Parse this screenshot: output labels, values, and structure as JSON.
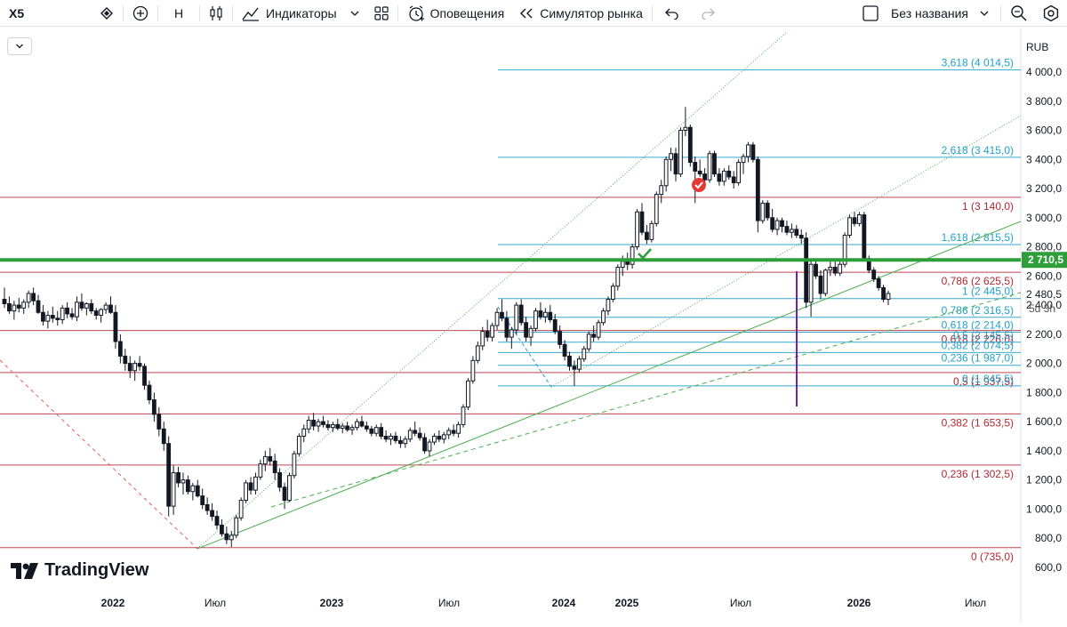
{
  "toolbar": {
    "symbol": "X5",
    "interval": "Н",
    "indicators_label": "Индикаторы",
    "alerts_label": "Оповещения",
    "replay_label": "Симулятор рынка",
    "layout_name": "Без названия",
    "icons": [
      "flag-icon",
      "add-icon",
      "candles-icon",
      "indicators-icon",
      "chevron-down-icon",
      "templates-icon",
      "alert-icon",
      "replay-icon",
      "undo-icon",
      "redo-icon",
      "layout-icon",
      "search-icon",
      "settings-icon"
    ]
  },
  "brand": {
    "logo_text": "TradingView"
  },
  "chart_data": {
    "type": "candlestick",
    "currency": "RUB",
    "last_price": "2 710,5",
    "cursor_price": "2 480,5",
    "countdown": "5d 3h",
    "y_axis_ticks": [
      "4 000,0",
      "3 800,0",
      "3 600,0",
      "3 400,0",
      "3 200,0",
      "3 000,0",
      "2 800,0",
      "2 600,0",
      "2 400,0",
      "2 200,0",
      "2 000,0",
      "1 800,0",
      "1 600,0",
      "1 400,0",
      "1 200,0",
      "1 000,0",
      "800,0",
      "600,0"
    ],
    "y_axis_values": [
      4000,
      3800,
      3600,
      3400,
      3200,
      3000,
      2800,
      2600,
      2400,
      2200,
      2000,
      1800,
      1600,
      1400,
      1200,
      1000,
      800,
      600
    ],
    "x_axis_labels": [
      "2022",
      "Июл",
      "2023",
      "Июл",
      "2024",
      "2025",
      "Июл",
      "2026",
      "Июл"
    ],
    "x_axis_bold": [
      true,
      false,
      true,
      false,
      true,
      true,
      false,
      true,
      false
    ],
    "fib_large": [
      {
        "label": "1 (3 140,0)",
        "value": 3140
      },
      {
        "label": "0,786 (2 625,5)",
        "value": 2625.5
      },
      {
        "label": "0,618 (2 226,0)",
        "value": 2226
      },
      {
        "label": "0,5 (1 937,5)",
        "value": 1937.5
      },
      {
        "label": "0,382 (1 653,5)",
        "value": 1653.5
      },
      {
        "label": "0,236 (1 302,5)",
        "value": 1302.5
      },
      {
        "label": "0 (735,0)",
        "value": 735
      }
    ],
    "fib_small": [
      {
        "label": "3,618 (4 014,5)",
        "value": 4014.5
      },
      {
        "label": "2,618 (3 415,0)",
        "value": 3415
      },
      {
        "label": "1,618 (2 815,5)",
        "value": 2815.5
      },
      {
        "label": "1 (2 445,0)",
        "value": 2445
      },
      {
        "label": "0,786 (2 316,5)",
        "value": 2316.5
      },
      {
        "label": "0,618 (2 214,0)",
        "value": 2214
      },
      {
        "label": "0,5 (2 145,5)",
        "value": 2145.5
      },
      {
        "label": "0,382 (2 074,5)",
        "value": 2074.5
      },
      {
        "label": "0,236 (1 987,0)",
        "value": 1987
      },
      {
        "label": "0 (1 845,5)",
        "value": 1845.5
      }
    ],
    "support_level": 2710.5,
    "colors": {
      "up": "#131722",
      "down": "#131722",
      "fib_large": "#b22833",
      "fib_small": "#22a0c8",
      "support": "#2e9e3a",
      "trend": "#4caf50",
      "vertical": "#7b1fa2"
    },
    "candles": [
      [
        2440,
        2520,
        2380,
        2410
      ],
      [
        2410,
        2460,
        2340,
        2360
      ],
      [
        2360,
        2430,
        2300,
        2400
      ],
      [
        2400,
        2450,
        2350,
        2380
      ],
      [
        2380,
        2440,
        2340,
        2420
      ],
      [
        2420,
        2500,
        2380,
        2480
      ],
      [
        2480,
        2520,
        2400,
        2430
      ],
      [
        2430,
        2470,
        2340,
        2350
      ],
      [
        2350,
        2400,
        2260,
        2290
      ],
      [
        2290,
        2360,
        2240,
        2330
      ],
      [
        2330,
        2390,
        2280,
        2310
      ],
      [
        2310,
        2360,
        2260,
        2300
      ],
      [
        2300,
        2400,
        2270,
        2380
      ],
      [
        2380,
        2420,
        2310,
        2340
      ],
      [
        2340,
        2380,
        2300,
        2320
      ],
      [
        2320,
        2460,
        2290,
        2420
      ],
      [
        2420,
        2480,
        2360,
        2380
      ],
      [
        2380,
        2420,
        2330,
        2410
      ],
      [
        2410,
        2440,
        2340,
        2360
      ],
      [
        2360,
        2380,
        2300,
        2330
      ],
      [
        2330,
        2380,
        2280,
        2370
      ],
      [
        2370,
        2420,
        2340,
        2400
      ],
      [
        2400,
        2460,
        2340,
        2350
      ],
      [
        2350,
        2400,
        2100,
        2150
      ],
      [
        2150,
        2200,
        2000,
        2050
      ],
      [
        2050,
        2100,
        1950,
        2000
      ],
      [
        2000,
        2050,
        1900,
        1950
      ],
      [
        1950,
        2020,
        1880,
        2000
      ],
      [
        2000,
        2050,
        1950,
        1980
      ],
      [
        1980,
        2000,
        1820,
        1850
      ],
      [
        1850,
        1880,
        1720,
        1750
      ],
      [
        1750,
        1800,
        1600,
        1650
      ],
      [
        1650,
        1700,
        1500,
        1550
      ],
      [
        1550,
        1600,
        1400,
        1450
      ],
      [
        1450,
        1500,
        950,
        1020
      ],
      [
        1020,
        1300,
        960,
        1250
      ],
      [
        1250,
        1290,
        1150,
        1180
      ],
      [
        1180,
        1250,
        1100,
        1200
      ],
      [
        1200,
        1230,
        1100,
        1120
      ],
      [
        1120,
        1180,
        1060,
        1160
      ],
      [
        1160,
        1200,
        1080,
        1090
      ],
      [
        1090,
        1140,
        1000,
        1030
      ],
      [
        1030,
        1080,
        960,
        990
      ],
      [
        990,
        1040,
        920,
        950
      ],
      [
        950,
        990,
        860,
        890
      ],
      [
        890,
        930,
        810,
        830
      ],
      [
        830,
        880,
        760,
        790
      ],
      [
        790,
        850,
        740,
        820
      ],
      [
        820,
        960,
        800,
        940
      ],
      [
        940,
        1080,
        920,
        1060
      ],
      [
        1060,
        1200,
        1040,
        1180
      ],
      [
        1180,
        1220,
        1100,
        1130
      ],
      [
        1130,
        1250,
        1100,
        1220
      ],
      [
        1220,
        1340,
        1200,
        1310
      ],
      [
        1310,
        1400,
        1260,
        1360
      ],
      [
        1360,
        1420,
        1300,
        1330
      ],
      [
        1330,
        1380,
        1200,
        1250
      ],
      [
        1250,
        1280,
        1120,
        1150
      ],
      [
        1150,
        1180,
        1000,
        1060
      ],
      [
        1060,
        1250,
        1050,
        1230
      ],
      [
        1230,
        1400,
        1210,
        1380
      ],
      [
        1380,
        1520,
        1360,
        1500
      ],
      [
        1500,
        1580,
        1460,
        1550
      ],
      [
        1550,
        1640,
        1520,
        1610
      ],
      [
        1610,
        1660,
        1540,
        1570
      ],
      [
        1570,
        1620,
        1530,
        1600
      ],
      [
        1600,
        1640,
        1560,
        1580
      ],
      [
        1580,
        1610,
        1540,
        1560
      ],
      [
        1560,
        1600,
        1530,
        1580
      ],
      [
        1580,
        1620,
        1540,
        1555
      ],
      [
        1555,
        1590,
        1520,
        1570
      ],
      [
        1570,
        1600,
        1530,
        1545
      ],
      [
        1545,
        1580,
        1510,
        1560
      ],
      [
        1560,
        1620,
        1540,
        1600
      ],
      [
        1600,
        1640,
        1560,
        1570
      ],
      [
        1570,
        1600,
        1530,
        1550
      ],
      [
        1550,
        1570,
        1500,
        1520
      ],
      [
        1520,
        1580,
        1500,
        1560
      ],
      [
        1560,
        1590,
        1480,
        1500
      ],
      [
        1500,
        1540,
        1460,
        1480
      ],
      [
        1480,
        1520,
        1440,
        1500
      ],
      [
        1500,
        1530,
        1450,
        1470
      ],
      [
        1470,
        1500,
        1420,
        1450
      ],
      [
        1450,
        1500,
        1420,
        1480
      ],
      [
        1480,
        1560,
        1460,
        1540
      ],
      [
        1540,
        1600,
        1500,
        1520
      ],
      [
        1520,
        1560,
        1470,
        1490
      ],
      [
        1490,
        1520,
        1380,
        1400
      ],
      [
        1400,
        1480,
        1360,
        1460
      ],
      [
        1460,
        1520,
        1440,
        1500
      ],
      [
        1500,
        1540,
        1460,
        1480
      ],
      [
        1480,
        1530,
        1450,
        1510
      ],
      [
        1510,
        1560,
        1480,
        1540
      ],
      [
        1540,
        1580,
        1500,
        1520
      ],
      [
        1520,
        1600,
        1490,
        1580
      ],
      [
        1580,
        1720,
        1560,
        1700
      ],
      [
        1700,
        1900,
        1680,
        1880
      ],
      [
        1880,
        2050,
        1860,
        2020
      ],
      [
        2020,
        2150,
        2000,
        2120
      ],
      [
        2120,
        2250,
        2090,
        2220
      ],
      [
        2220,
        2300,
        2150,
        2180
      ],
      [
        2180,
        2280,
        2150,
        2260
      ],
      [
        2260,
        2380,
        2230,
        2350
      ],
      [
        2350,
        2440,
        2290,
        2310
      ],
      [
        2310,
        2360,
        2150,
        2180
      ],
      [
        2180,
        2250,
        2100,
        2230
      ],
      [
        2230,
        2420,
        2200,
        2400
      ],
      [
        2400,
        2440,
        2260,
        2280
      ],
      [
        2280,
        2320,
        2150,
        2180
      ],
      [
        2180,
        2260,
        2120,
        2240
      ],
      [
        2240,
        2380,
        2220,
        2360
      ],
      [
        2360,
        2420,
        2300,
        2320
      ],
      [
        2320,
        2380,
        2280,
        2350
      ],
      [
        2350,
        2400,
        2280,
        2300
      ],
      [
        2300,
        2340,
        2200,
        2220
      ],
      [
        2220,
        2260,
        2100,
        2130
      ],
      [
        2130,
        2160,
        2020,
        2050
      ],
      [
        2050,
        2080,
        1950,
        1980
      ],
      [
        1980,
        2020,
        1845,
        1960
      ],
      [
        1960,
        2050,
        1940,
        2030
      ],
      [
        2030,
        2120,
        2010,
        2100
      ],
      [
        2100,
        2220,
        2080,
        2200
      ],
      [
        2200,
        2260,
        2150,
        2180
      ],
      [
        2180,
        2300,
        2160,
        2280
      ],
      [
        2280,
        2380,
        2260,
        2360
      ],
      [
        2360,
        2460,
        2330,
        2440
      ],
      [
        2440,
        2550,
        2420,
        2530
      ],
      [
        2530,
        2680,
        2500,
        2660
      ],
      [
        2660,
        2740,
        2600,
        2700
      ],
      [
        2700,
        2760,
        2640,
        2680
      ],
      [
        2680,
        2820,
        2650,
        2800
      ],
      [
        2800,
        3060,
        2780,
        3040
      ],
      [
        3040,
        3100,
        2880,
        2900
      ],
      [
        2900,
        2950,
        2820,
        2850
      ],
      [
        2850,
        2980,
        2830,
        2960
      ],
      [
        2960,
        3180,
        2940,
        3160
      ],
      [
        3160,
        3260,
        3100,
        3220
      ],
      [
        3220,
        3420,
        3180,
        3400
      ],
      [
        3400,
        3480,
        3320,
        3440
      ],
      [
        3440,
        3480,
        3250,
        3300
      ],
      [
        3300,
        3620,
        3280,
        3600
      ],
      [
        3600,
        3760,
        3560,
        3620
      ],
      [
        3620,
        3640,
        3350,
        3380
      ],
      [
        3380,
        3420,
        3100,
        3320
      ],
      [
        3320,
        3400,
        3280,
        3300
      ],
      [
        3300,
        3340,
        3200,
        3260
      ],
      [
        3260,
        3460,
        3240,
        3440
      ],
      [
        3440,
        3460,
        3280,
        3300
      ],
      [
        3300,
        3340,
        3220,
        3250
      ],
      [
        3250,
        3340,
        3220,
        3320
      ],
      [
        3320,
        3360,
        3260,
        3280
      ],
      [
        3280,
        3320,
        3200,
        3240
      ],
      [
        3240,
        3400,
        3220,
        3380
      ],
      [
        3380,
        3440,
        3300,
        3420
      ],
      [
        3420,
        3520,
        3380,
        3500
      ],
      [
        3500,
        3520,
        3380,
        3400
      ],
      [
        3400,
        3420,
        2900,
        2980
      ],
      [
        2980,
        3120,
        2960,
        3100
      ],
      [
        3100,
        3120,
        2980,
        3000
      ],
      [
        3000,
        3060,
        2900,
        2920
      ],
      [
        2920,
        3000,
        2880,
        2980
      ],
      [
        2980,
        3000,
        2900,
        2940
      ],
      [
        2940,
        2980,
        2880,
        2900
      ],
      [
        2900,
        2960,
        2860,
        2920
      ],
      [
        2920,
        2950,
        2860,
        2880
      ],
      [
        2880,
        2920,
        2820,
        2860
      ],
      [
        2860,
        2900,
        2380,
        2420
      ],
      [
        2420,
        2720,
        2320,
        2680
      ],
      [
        2680,
        2720,
        2580,
        2600
      ],
      [
        2600,
        2640,
        2440,
        2480
      ],
      [
        2480,
        2650,
        2460,
        2640
      ],
      [
        2640,
        2700,
        2600,
        2660
      ],
      [
        2660,
        2720,
        2600,
        2620
      ],
      [
        2620,
        2700,
        2600,
        2680
      ],
      [
        2680,
        2900,
        2660,
        2880
      ],
      [
        2880,
        3020,
        2860,
        3000
      ],
      [
        3000,
        3040,
        2940,
        2960
      ],
      [
        2960,
        3040,
        2940,
        3020
      ],
      [
        3020,
        3040,
        2700,
        2720
      ],
      [
        2720,
        2740,
        2620,
        2640
      ],
      [
        2640,
        2660,
        2560,
        2580
      ],
      [
        2580,
        2600,
        2500,
        2520
      ],
      [
        2520,
        2540,
        2420,
        2440
      ],
      [
        2440,
        2500,
        2400,
        2480
      ]
    ]
  }
}
